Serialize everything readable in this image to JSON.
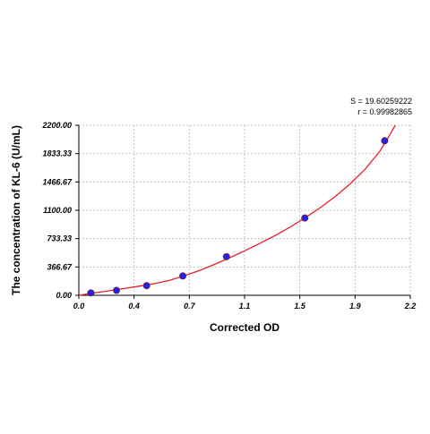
{
  "chart_data": {
    "type": "scatter",
    "title": "",
    "xlabel": "Corrected OD",
    "ylabel": "The concentration of KL-6 (U/mL)",
    "xlim": [
      0.0,
      2.2
    ],
    "ylim": [
      0.0,
      2200.0
    ],
    "x_ticks": [
      "0.0",
      "0.4",
      "0.7",
      "1.1",
      "1.5",
      "1.9",
      "2.2"
    ],
    "y_ticks": [
      "0.00",
      "366.67",
      "733.33",
      "1100.00",
      "1466.67",
      "1833.33",
      "2200.00"
    ],
    "grid": true,
    "annotations": {
      "s_value": "S = 19.60259222",
      "r_value": "r = 0.99982865"
    },
    "series": [
      {
        "type": "scatter",
        "points": [
          {
            "x": 0.08,
            "y": 31
          },
          {
            "x": 0.25,
            "y": 63
          },
          {
            "x": 0.45,
            "y": 125
          },
          {
            "x": 0.69,
            "y": 250
          },
          {
            "x": 0.98,
            "y": 500
          },
          {
            "x": 1.5,
            "y": 1000
          },
          {
            "x": 2.03,
            "y": 2000
          }
        ]
      },
      {
        "type": "line",
        "curve": "fit",
        "points": [
          {
            "x": 0.0,
            "y": 0
          },
          {
            "x": 0.1,
            "y": 30
          },
          {
            "x": 0.2,
            "y": 58
          },
          {
            "x": 0.3,
            "y": 88
          },
          {
            "x": 0.4,
            "y": 118
          },
          {
            "x": 0.5,
            "y": 150
          },
          {
            "x": 0.6,
            "y": 192
          },
          {
            "x": 0.7,
            "y": 254
          },
          {
            "x": 0.8,
            "y": 320
          },
          {
            "x": 0.9,
            "y": 400
          },
          {
            "x": 1.0,
            "y": 485
          },
          {
            "x": 1.1,
            "y": 575
          },
          {
            "x": 1.2,
            "y": 670
          },
          {
            "x": 1.3,
            "y": 770
          },
          {
            "x": 1.4,
            "y": 880
          },
          {
            "x": 1.5,
            "y": 1000
          },
          {
            "x": 1.6,
            "y": 1130
          },
          {
            "x": 1.7,
            "y": 1275
          },
          {
            "x": 1.8,
            "y": 1440
          },
          {
            "x": 1.9,
            "y": 1630
          },
          {
            "x": 2.0,
            "y": 1870
          },
          {
            "x": 2.05,
            "y": 2030
          },
          {
            "x": 2.1,
            "y": 2200
          }
        ]
      }
    ],
    "colors": {
      "curve": "#e8202a",
      "point_fill": "#2222ee",
      "point_stroke": "#7a1f3c",
      "grid": "#b4b4b4",
      "axis": "#000000"
    }
  }
}
